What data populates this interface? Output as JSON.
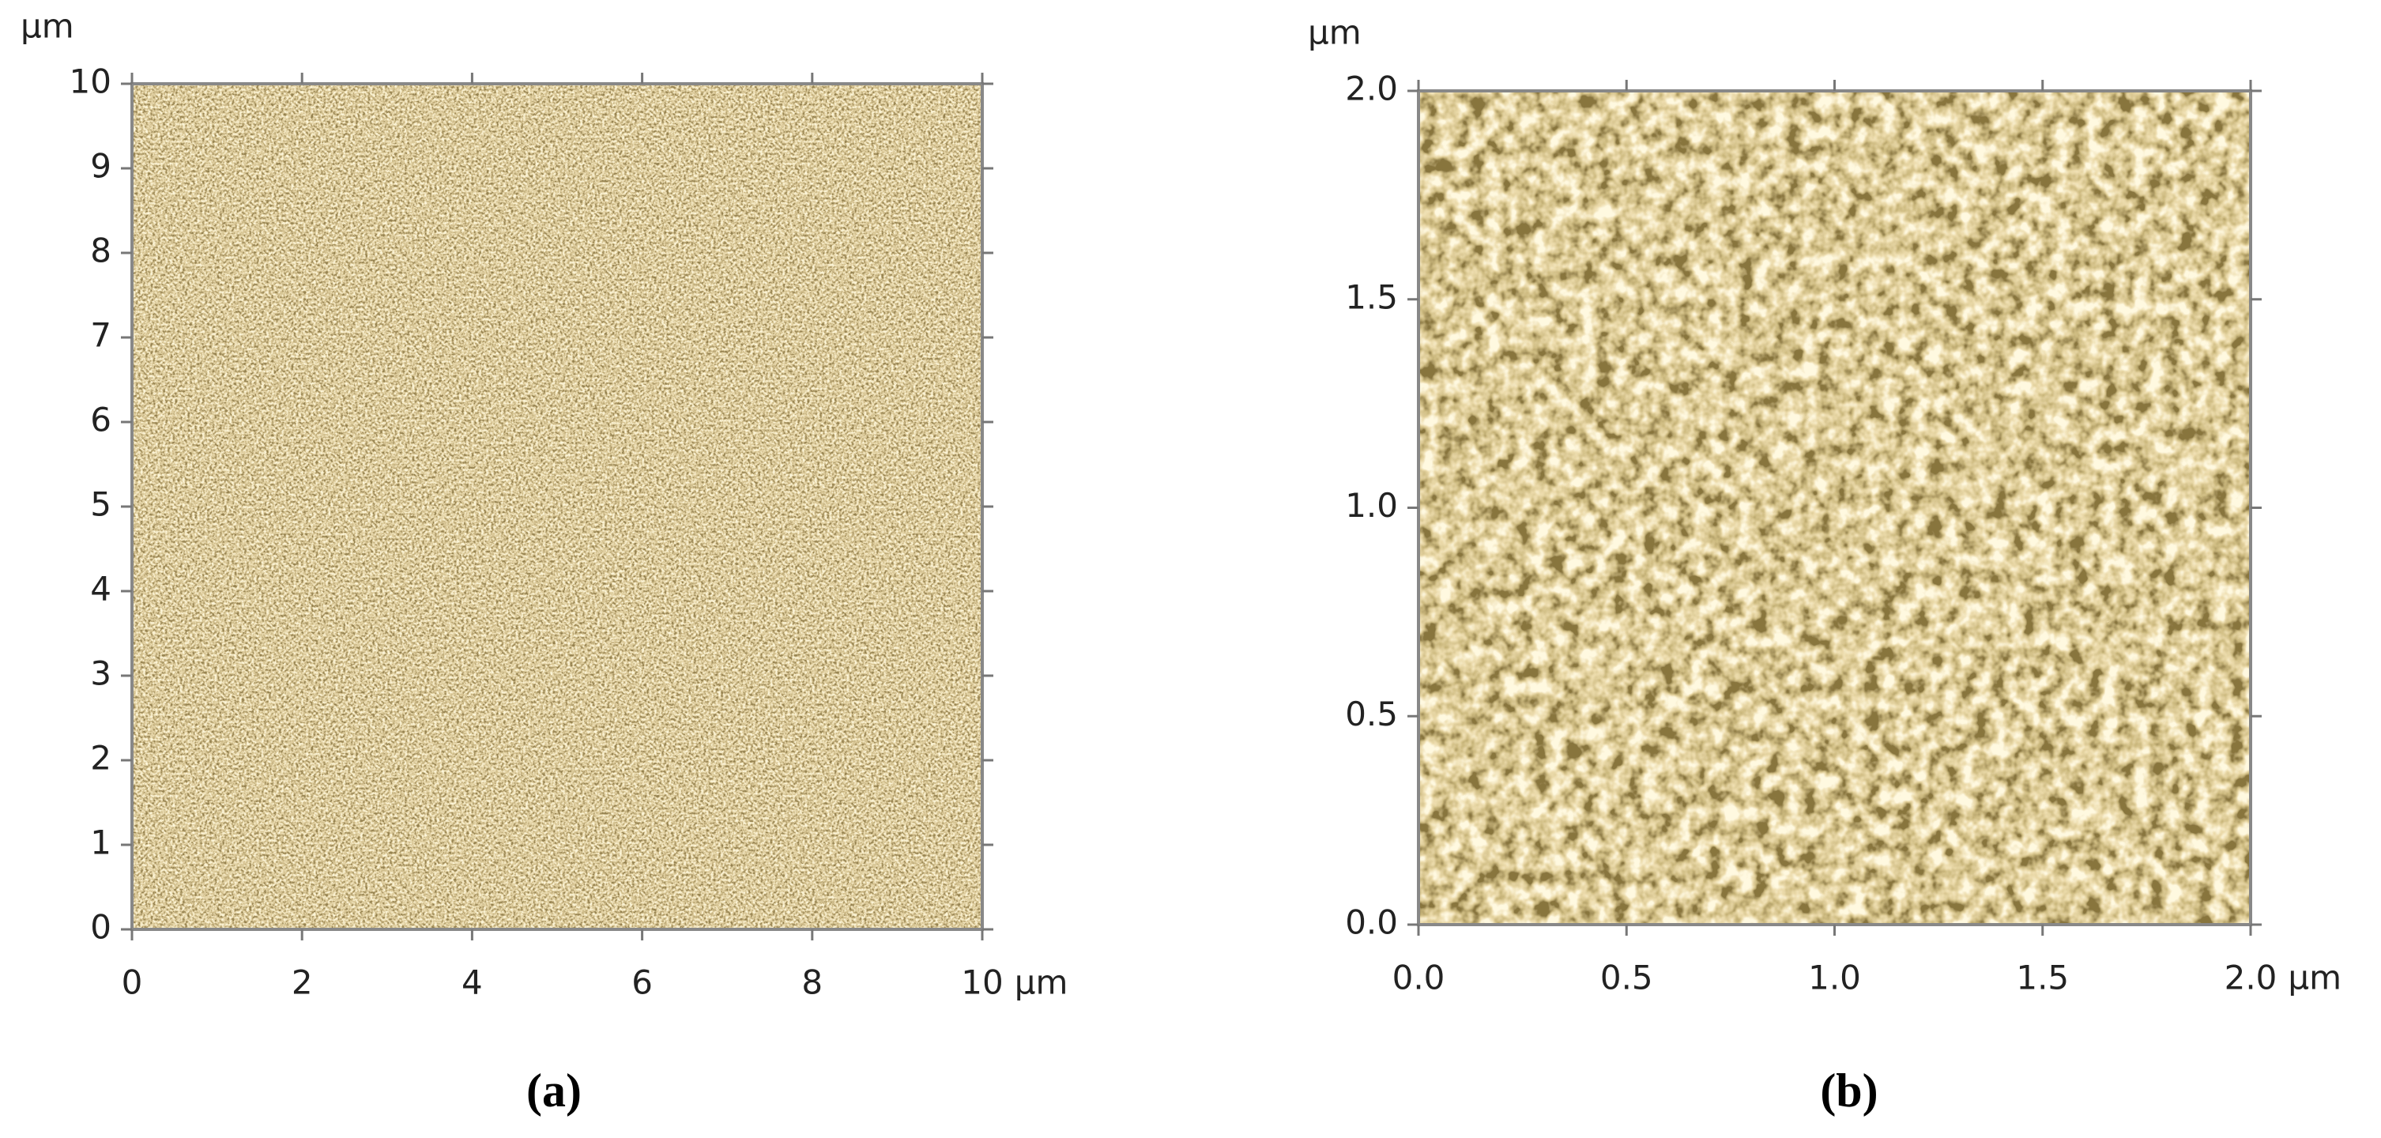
{
  "chart_data": [
    {
      "type": "image",
      "caption": "(a)",
      "x_unit": "μm",
      "y_unit": "μm",
      "xlim": [
        0,
        10
      ],
      "ylim": [
        0,
        10
      ],
      "xticks": [
        0,
        2,
        4,
        6,
        8,
        10
      ],
      "yticks": [
        0,
        1,
        2,
        3,
        4,
        5,
        6,
        7,
        8,
        9,
        10
      ]
    },
    {
      "type": "image",
      "caption": "(b)",
      "x_unit": "μm",
      "y_unit": "μm",
      "xlim": [
        0,
        2
      ],
      "ylim": [
        0,
        2
      ],
      "xticks": [
        {
          "value": 0,
          "label": "0.0"
        },
        {
          "value": 0.5,
          "label": "0.5"
        },
        {
          "value": 1,
          "label": "1.0"
        },
        {
          "value": 1.5,
          "label": "1.5"
        },
        {
          "value": 2,
          "label": "2.0"
        }
      ],
      "yticks": [
        {
          "value": 0,
          "label": "0.0"
        },
        {
          "value": 0.5,
          "label": "0.5"
        },
        {
          "value": 1,
          "label": "1.0"
        },
        {
          "value": 1.5,
          "label": "1.5"
        },
        {
          "value": 2,
          "label": "2.0"
        }
      ]
    }
  ]
}
